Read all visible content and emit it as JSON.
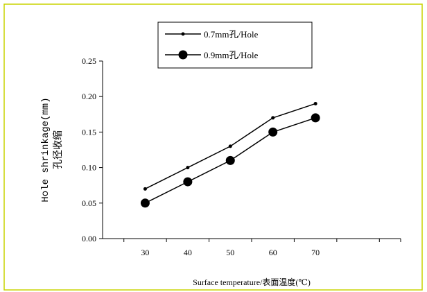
{
  "colors": {
    "frame": "#c8d400",
    "axis": "#000000",
    "series": "#000000",
    "background": "#ffffff"
  },
  "chart_data": {
    "type": "line",
    "x": [
      30,
      40,
      50,
      60,
      70
    ],
    "xticks": [
      "30",
      "40",
      "50",
      "60",
      "70"
    ],
    "xlim": [
      20,
      90
    ],
    "ylim": [
      0,
      0.25
    ],
    "yticks": [
      "0.00",
      "0.05",
      "0.10",
      "0.15",
      "0.20",
      "0.25"
    ],
    "grid": false,
    "legend_position": "top-center",
    "xlabel": "Surface temperature/表面温度(℃)",
    "ylabel": "Hole shrinkage(mm)",
    "ylabel2": "孔径收缩",
    "series": [
      {
        "name": "0.7mm孔/Hole",
        "marker": "small-dot",
        "values": [
          0.07,
          0.1,
          0.13,
          0.17,
          0.19
        ]
      },
      {
        "name": "0.9mm孔/Hole",
        "marker": "large-dot",
        "values": [
          0.05,
          0.08,
          0.11,
          0.15,
          0.17
        ]
      }
    ]
  }
}
